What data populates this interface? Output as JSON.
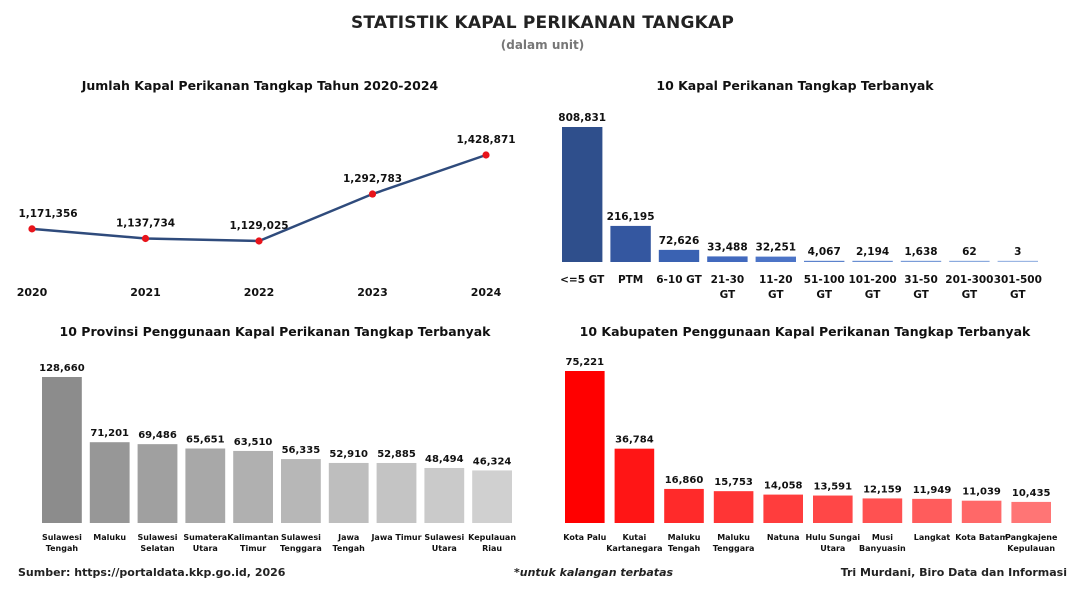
{
  "header": {
    "title": "STATISTIK KAPAL PERIKANAN TANGKAP",
    "subtitle": "(dalam unit)"
  },
  "footer": {
    "source": "Sumber: https://portaldata.kkp.go.id, 2026",
    "note": "*untuk kalangan terbatas",
    "author": "Tri Murdani, Biro Data dan Informasi"
  },
  "chart_data": [
    {
      "id": "yearly",
      "type": "line",
      "title": "Jumlah Kapal Perikanan Tangkap Tahun 2020-2024",
      "x": [
        "2020",
        "2021",
        "2022",
        "2023",
        "2024"
      ],
      "values": [
        1171356,
        1137734,
        1129025,
        1292783,
        1428871
      ],
      "labels": [
        "1,171,356",
        "1,137,734",
        "1,129,025",
        "1,292,783",
        "1,428,871"
      ],
      "xlabel": "",
      "ylabel": "",
      "line_color": "#2F4B7C",
      "marker_color": "#E8141B"
    },
    {
      "id": "size",
      "type": "bar",
      "title": "10 Kapal Perikanan Tangkap Terbanyak",
      "categories": [
        "<=5 GT",
        "PTM",
        "6-10 GT",
        "21-30 GT",
        "11-20 GT",
        "51-100 GT",
        "101-200 GT",
        "31-50 GT",
        "201-300 GT",
        "301-500 GT"
      ],
      "values": [
        808831,
        216195,
        72626,
        33488,
        32251,
        4067,
        2194,
        1638,
        62,
        3
      ],
      "labels": [
        "808,831",
        "216,195",
        "72,626",
        "33,488",
        "32,251",
        "4,067",
        "2,194",
        "1,638",
        "62",
        "3"
      ],
      "colors": [
        "#2F4F8C",
        "#3457A0",
        "#3A62B2",
        "#4169BE",
        "#4C74C7",
        "#5B82CC",
        "#6A8FD2",
        "#7A9CD8",
        "#8BAADE",
        "#9BB6E3"
      ]
    },
    {
      "id": "province",
      "type": "bar",
      "title": "10 Provinsi Penggunaan Kapal Perikanan Tangkap Terbanyak",
      "categories": [
        "Sulawesi Tengah",
        "Maluku",
        "Sulawesi Selatan",
        "Sumatera Utara",
        "Kalimantan Timur",
        "Sulawesi Tenggara",
        "Jawa Tengah",
        "Jawa Timur",
        "Sulawesi Utara",
        "Kepulauan Riau"
      ],
      "category_lines": [
        [
          "Sulawesi",
          "Tengah"
        ],
        [
          "Maluku"
        ],
        [
          "Sulawesi",
          "Selatan"
        ],
        [
          "Sumatera",
          "Utara"
        ],
        [
          "Kalimantan",
          "Timur"
        ],
        [
          "Sulawesi",
          "Tenggara"
        ],
        [
          "Jawa",
          "Tengah"
        ],
        [
          "Jawa Timur"
        ],
        [
          "Sulawesi",
          "Utara"
        ],
        [
          "Kepulauan",
          "Riau"
        ]
      ],
      "values": [
        128660,
        71201,
        69486,
        65651,
        63510,
        56335,
        52910,
        52885,
        48494,
        46324
      ],
      "labels": [
        "128,660",
        "71,201",
        "69,486",
        "65,651",
        "63,510",
        "56,335",
        "52,910",
        "52,885",
        "48,494",
        "46,324"
      ],
      "colors": [
        "#8C8C8C",
        "#979797",
        "#A0A0A0",
        "#A8A8A8",
        "#B0B0B0",
        "#B7B7B7",
        "#BEBEBE",
        "#C4C4C4",
        "#CACACA",
        "#D0D0D0"
      ]
    },
    {
      "id": "regency",
      "type": "bar",
      "title": "10 Kabupaten Penggunaan Kapal Perikanan Tangkap Terbanyak",
      "categories": [
        "Kota Palu",
        "Kutai Kartanegara",
        "Maluku Tengah",
        "Maluku Tenggara",
        "Natuna",
        "Hulu Sungai Utara",
        "Musi Banyuasin",
        "Langkat",
        "Kota Batam",
        "Pangkajene Kepulauan"
      ],
      "category_lines": [
        [
          "Kota Palu"
        ],
        [
          "Kutai",
          "Kartanegara"
        ],
        [
          "Maluku",
          "Tengah"
        ],
        [
          "Maluku",
          "Tenggara"
        ],
        [
          "Natuna"
        ],
        [
          "Hulu Sungai",
          "Utara"
        ],
        [
          "Musi",
          "Banyuasin"
        ],
        [
          "Langkat"
        ],
        [
          "Kota Batam"
        ],
        [
          "Pangkajene",
          "Kepulauan"
        ]
      ],
      "values": [
        75221,
        36784,
        16860,
        15753,
        14058,
        13591,
        12159,
        11949,
        11039,
        10435
      ],
      "labels": [
        "75,221",
        "36,784",
        "16,860",
        "15,753",
        "14,058",
        "13,591",
        "12,159",
        "11,949",
        "11,039",
        "10,435"
      ],
      "colors": [
        "#FF0000",
        "#FF1515",
        "#FF2A2A",
        "#FF3535",
        "#FF3D3D",
        "#FF4747",
        "#FF5151",
        "#FF5C5C",
        "#FF6868",
        "#FF7575"
      ]
    }
  ]
}
